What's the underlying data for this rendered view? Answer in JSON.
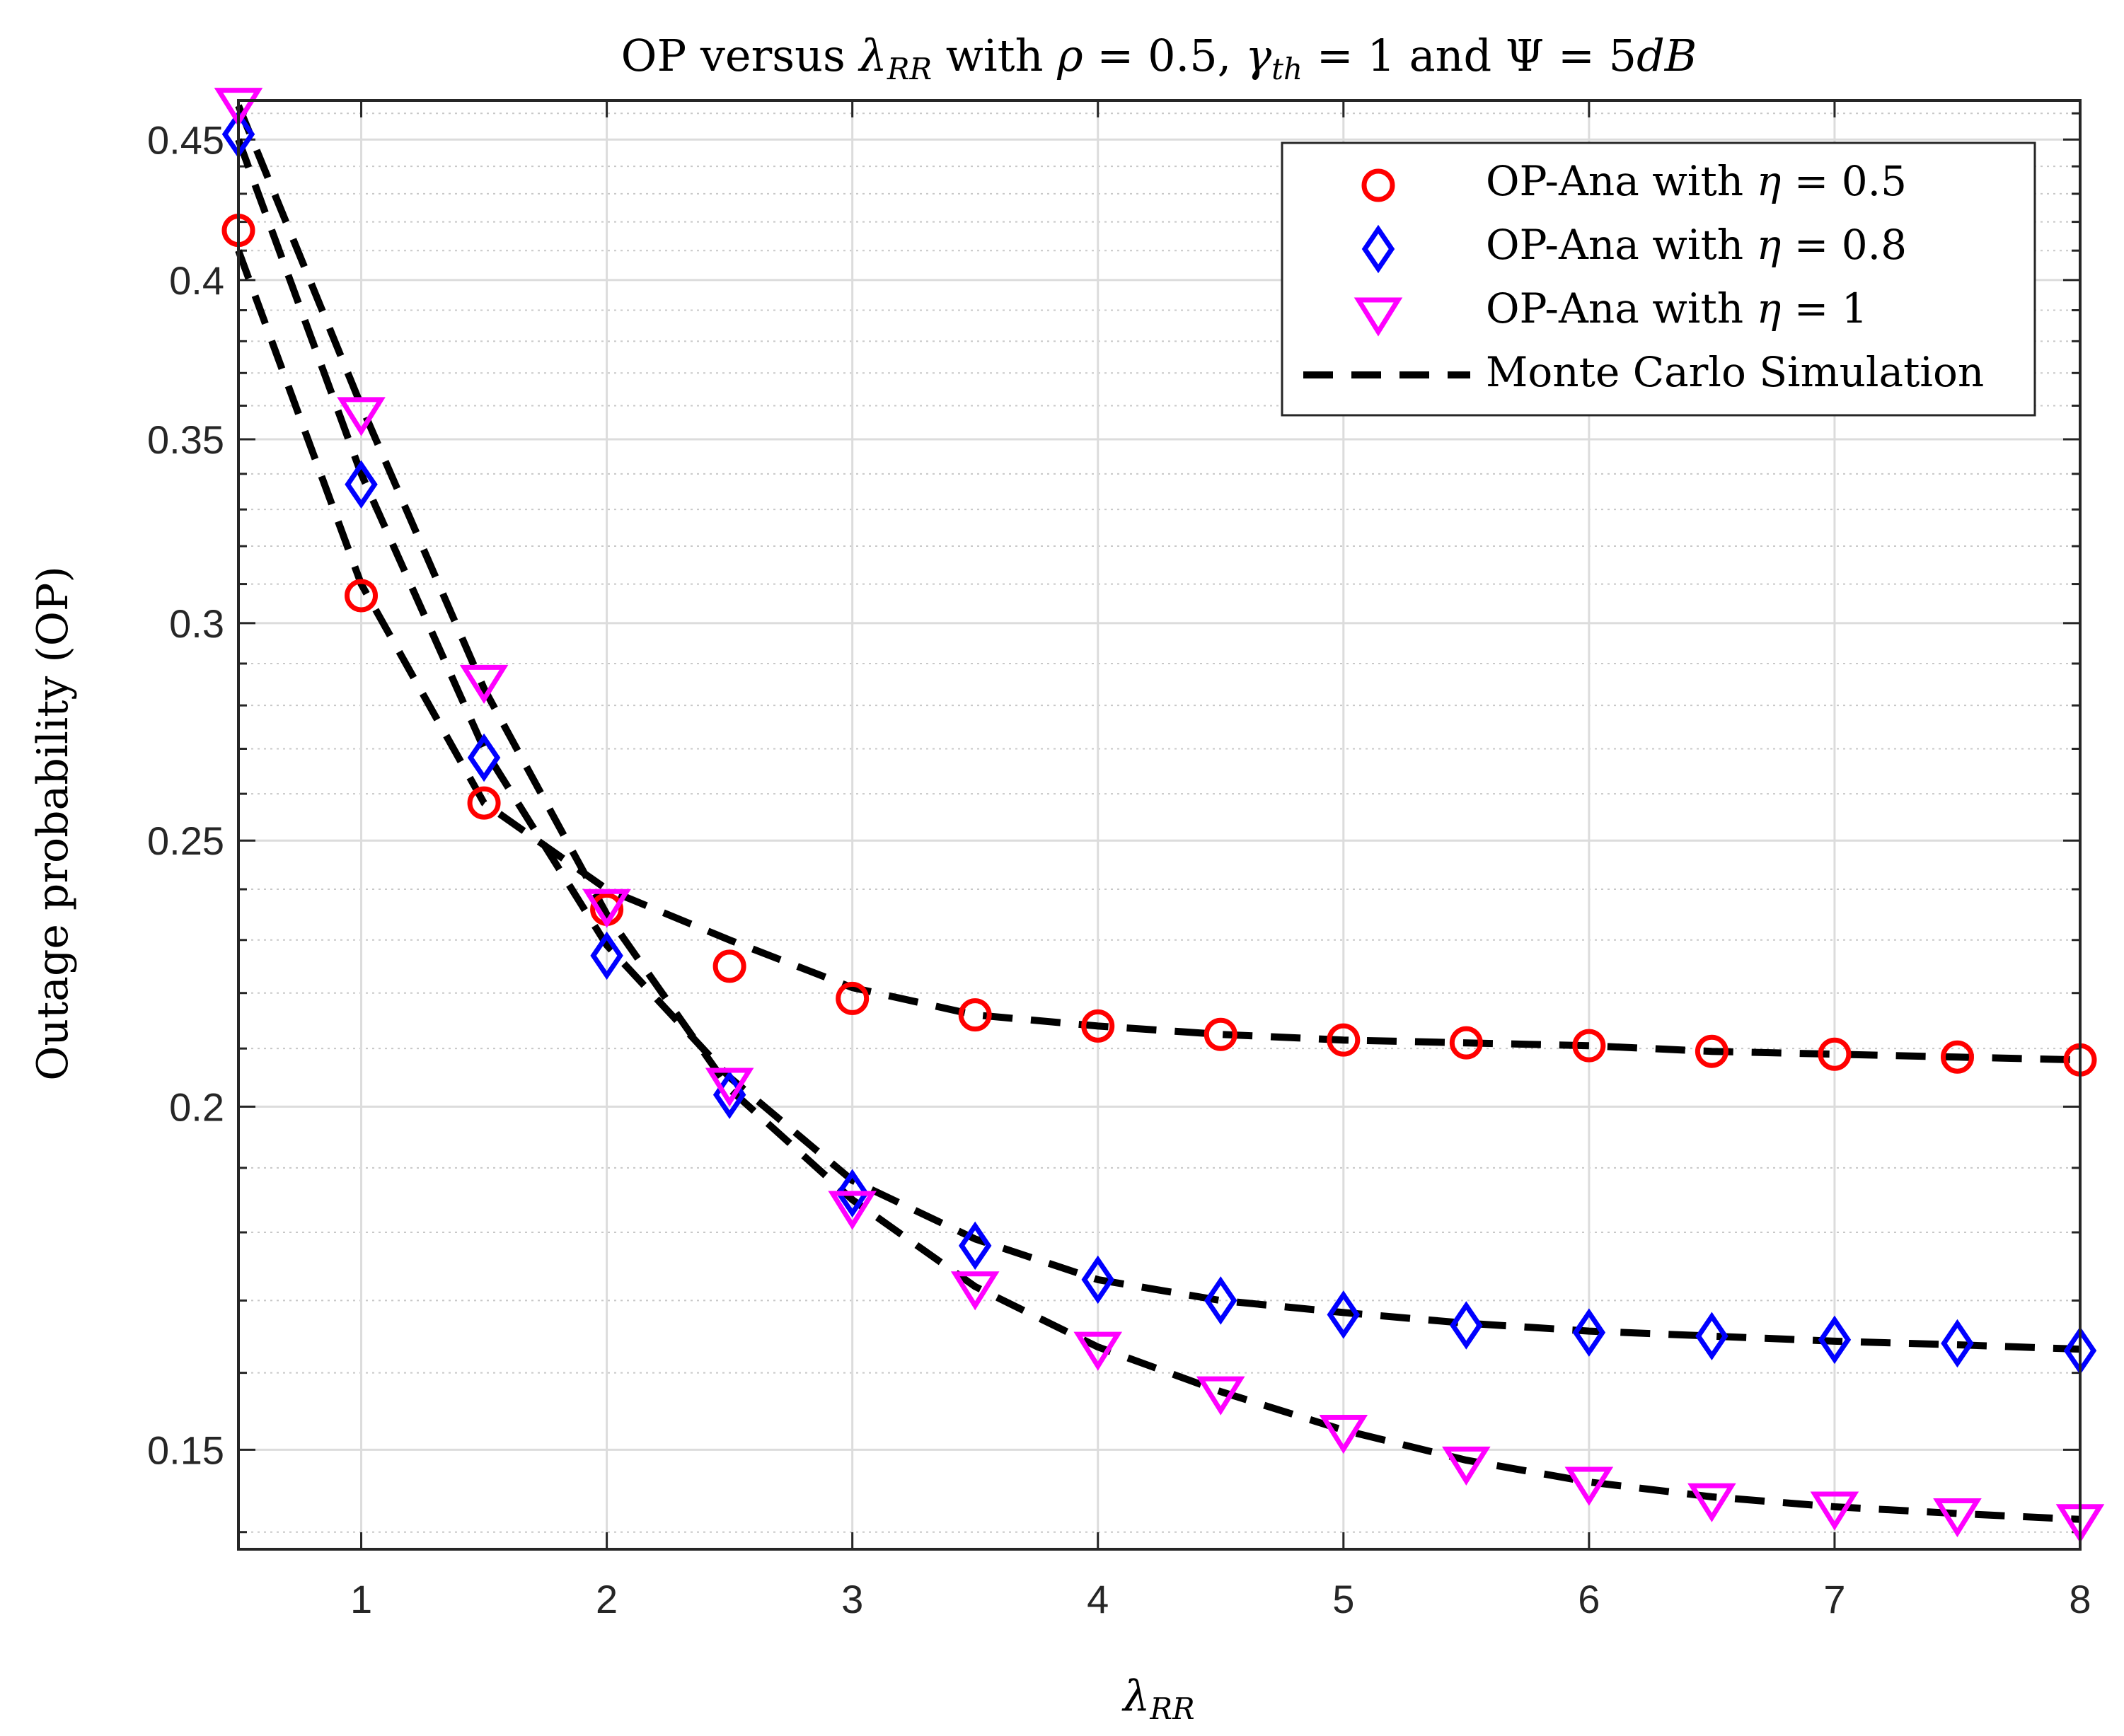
{
  "chart_data": {
    "type": "line",
    "title": {
      "prefix": "OP versus ",
      "lambda": "λ",
      "lambda_sub": "RR",
      "mid1": " with ",
      "rho": "ρ",
      "mid2": " = 0.5, ",
      "gamma": "γ",
      "gamma_sub": "th",
      "mid3": " = 1 and ",
      "psi": "Ψ",
      "mid4": " = 5",
      "unit": "dB"
    },
    "xlabel": {
      "symbol": "λ",
      "sub": "RR"
    },
    "ylabel": "Outage probability (OP)",
    "xlim": [
      0.5,
      8
    ],
    "ylim": [
      0.138,
      0.465
    ],
    "yscale": "log",
    "xticks": [
      1,
      2,
      3,
      4,
      5,
      6,
      7,
      8
    ],
    "xtick_labels": [
      "1",
      "2",
      "3",
      "4",
      "5",
      "6",
      "7",
      "8"
    ],
    "yticks": [
      0.15,
      0.2,
      0.25,
      0.3,
      0.35,
      0.4,
      0.45
    ],
    "ytick_labels": [
      "0.15",
      "0.2",
      "0.25",
      "0.3",
      "0.35",
      "0.4",
      "0.45"
    ],
    "grid": true,
    "legend_position": "top-right",
    "x": [
      0.5,
      1,
      1.5,
      2,
      2.5,
      3,
      3.5,
      4,
      4.5,
      5,
      5.5,
      6,
      6.5,
      7,
      7.5,
      8
    ],
    "series": [
      {
        "name": "OP-Ana with η = 0.5",
        "legend_prefix": "OP-Ana with ",
        "eta": "η",
        "legend_suffix": " = 0.5",
        "marker": "circle",
        "color": "#ff0000",
        "values": [
          0.417,
          0.307,
          0.258,
          0.236,
          0.225,
          0.219,
          0.216,
          0.214,
          0.2125,
          0.2115,
          0.211,
          0.2105,
          0.2095,
          0.209,
          0.2085,
          0.208
        ]
      },
      {
        "name": "OP-Ana with η = 0.8",
        "legend_prefix": "OP-Ana with ",
        "eta": "η",
        "legend_suffix": " = 0.8",
        "marker": "diamond",
        "color": "#0000ff",
        "values": [
          0.452,
          0.337,
          0.268,
          0.227,
          0.202,
          0.186,
          0.178,
          0.173,
          0.17,
          0.168,
          0.1665,
          0.1655,
          0.165,
          0.1645,
          0.164,
          0.163
        ]
      },
      {
        "name": "OP-Ana with η = 1",
        "legend_prefix": "OP-Ana with ",
        "eta": "η",
        "legend_suffix": " = 1",
        "marker": "triangle-down",
        "color": "#ff00ff",
        "values": [
          0.464,
          0.358,
          0.286,
          0.237,
          0.204,
          0.184,
          0.172,
          0.1635,
          0.1575,
          0.1525,
          0.1485,
          0.146,
          0.144,
          0.143,
          0.1422,
          0.1415
        ]
      },
      {
        "name": "Monte Carlo Simulation",
        "marker": "none",
        "line": "dashed",
        "color": "#000000"
      }
    ],
    "simulation_curves": [
      [
        0.41,
        0.31,
        0.258,
        0.24,
        0.23,
        0.221,
        0.216,
        0.214,
        0.2125,
        0.2115,
        0.211,
        0.2105,
        0.2095,
        0.209,
        0.2085,
        0.208
      ],
      [
        0.45,
        0.34,
        0.27,
        0.229,
        0.205,
        0.188,
        0.179,
        0.173,
        0.17,
        0.1683,
        0.1668,
        0.1657,
        0.165,
        0.1643,
        0.1638,
        0.1632
      ],
      [
        0.463,
        0.36,
        0.284,
        0.235,
        0.203,
        0.185,
        0.172,
        0.1635,
        0.1575,
        0.1525,
        0.1487,
        0.146,
        0.1442,
        0.143,
        0.1422,
        0.1415
      ]
    ]
  }
}
